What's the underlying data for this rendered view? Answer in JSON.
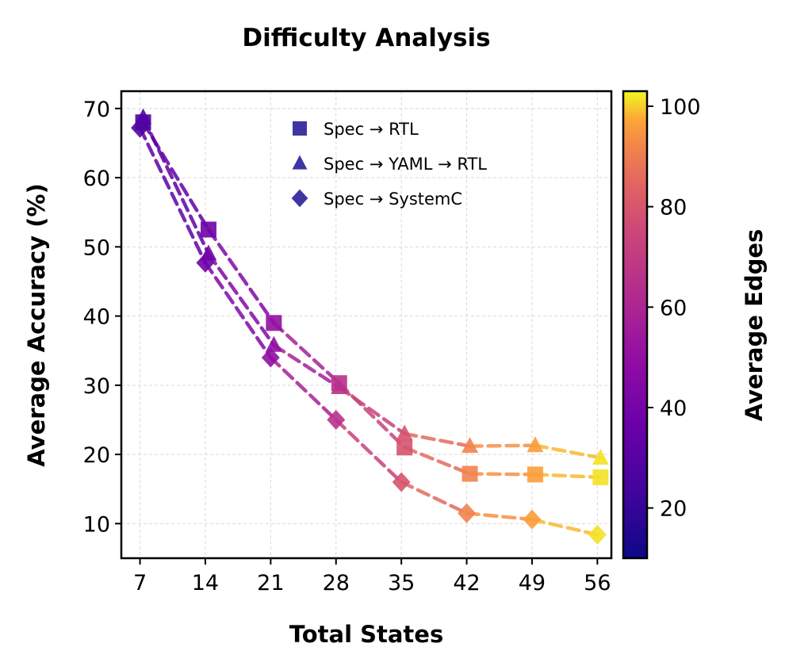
{
  "chart_data": {
    "type": "line",
    "title": "Difficulty Analysis",
    "xlabel": "Total States",
    "ylabel": "Average Accuracy (%)",
    "x": [
      7,
      14,
      21,
      28,
      35,
      42,
      49,
      56
    ],
    "xticks": [
      "7",
      "14",
      "21",
      "28",
      "35",
      "42",
      "49",
      "56"
    ],
    "yticks": [
      "10",
      "20",
      "30",
      "40",
      "50",
      "60",
      "70"
    ],
    "xlim": [
      5,
      57.5
    ],
    "ylim": [
      5,
      72.5
    ],
    "grid": true,
    "legend_position": "top-right",
    "colormap": "plasma",
    "line_style": "dashed",
    "series": [
      {
        "name": "Spec → RTL",
        "marker": "square",
        "values": [
          68.0,
          52.5,
          39.0,
          30.3,
          21.0,
          17.2,
          17.1,
          16.7
        ],
        "edges": [
          24,
          32,
          42,
          54,
          66,
          82,
          90,
          100
        ]
      },
      {
        "name": "Spec → YAML → RTL",
        "marker": "triangle",
        "values": [
          68.7,
          49.0,
          35.8,
          29.7,
          23.0,
          21.2,
          21.3,
          19.5
        ],
        "edges": [
          24,
          32,
          42,
          54,
          66,
          82,
          90,
          100
        ]
      },
      {
        "name": "Spec → SystemC",
        "marker": "diamond",
        "values": [
          67.2,
          47.7,
          34.0,
          25.0,
          16.0,
          11.5,
          10.6,
          8.4
        ],
        "edges": [
          24,
          32,
          42,
          54,
          66,
          82,
          90,
          100
        ]
      }
    ],
    "colorbar": {
      "label": "Average Edges",
      "range": [
        10,
        103
      ],
      "ticks": [
        "20",
        "40",
        "60",
        "80",
        "100"
      ]
    },
    "legend_marker_color": "#2a1f99"
  }
}
